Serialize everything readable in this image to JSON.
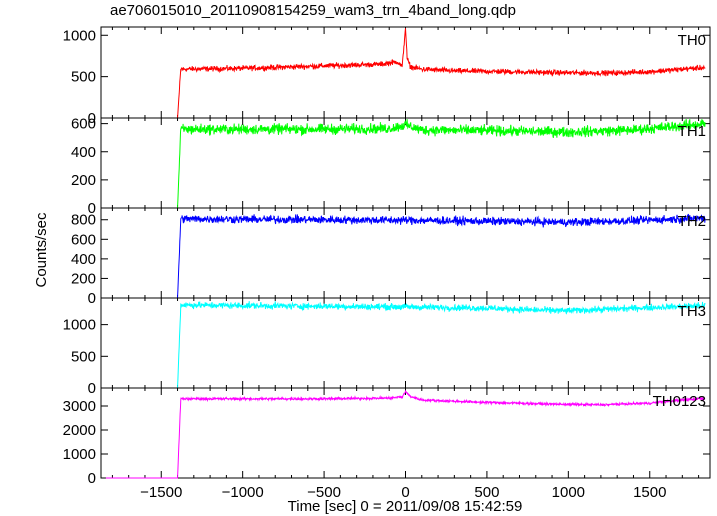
{
  "chart_data": {
    "type": "line",
    "title": "ae706015010_20110908154259_wam3_trn_4band_long.qdp",
    "xlabel": "Time [sec] 0 = 2011/09/08 15:42:59",
    "ylabel": "Counts/sec",
    "xlim": [
      -1870,
      1870
    ],
    "xticks": [
      -1500,
      -1000,
      -500,
      0,
      500,
      1000,
      1500
    ],
    "xtick_labels": [
      "−1500",
      "−1000",
      "−500",
      "0",
      "500",
      "1000",
      "1500"
    ],
    "onset_time": -1390,
    "series": [
      {
        "name": "TH0",
        "color": "#ff0000",
        "ylim": [
          0,
          1100
        ],
        "yticks": [
          0,
          500,
          1000
        ],
        "x": [
          -1840,
          -1400,
          -1380,
          -1000,
          -500,
          -150,
          -50,
          -20,
          0,
          10,
          30,
          100,
          300,
          600,
          900,
          1100,
          1300,
          1500,
          1700,
          1840
        ],
        "y": [
          0,
          0,
          590,
          600,
          630,
          650,
          680,
          620,
          1100,
          720,
          620,
          590,
          570,
          560,
          550,
          545,
          545,
          560,
          590,
          610
        ],
        "noise": 35
      },
      {
        "name": "TH1",
        "color": "#00ff00",
        "ylim": [
          0,
          640
        ],
        "yticks": [
          0,
          200,
          400,
          600
        ],
        "x": [
          -1840,
          -1400,
          -1380,
          -1000,
          -500,
          -100,
          0,
          100,
          500,
          1000,
          1400,
          1600,
          1840
        ],
        "y": [
          0,
          0,
          560,
          560,
          560,
          565,
          590,
          555,
          550,
          540,
          555,
          575,
          600
        ],
        "noise": 40
      },
      {
        "name": "TH2",
        "color": "#0000ff",
        "ylim": [
          0,
          920
        ],
        "yticks": [
          0,
          200,
          400,
          600,
          800
        ],
        "x": [
          -1840,
          -1400,
          -1380,
          -1000,
          -500,
          0,
          500,
          1000,
          1400,
          1840
        ],
        "y": [
          0,
          0,
          810,
          805,
          800,
          795,
          785,
          775,
          790,
          820
        ],
        "noise": 45
      },
      {
        "name": "TH3",
        "color": "#00ffff",
        "ylim": [
          0,
          1420
        ],
        "yticks": [
          0,
          500,
          1000
        ],
        "x": [
          -1840,
          -1400,
          -1380,
          -1000,
          -500,
          0,
          500,
          800,
          1000,
          1200,
          1500,
          1840
        ],
        "y": [
          0,
          0,
          1310,
          1300,
          1290,
          1280,
          1260,
          1230,
          1220,
          1240,
          1270,
          1300
        ],
        "noise": 55
      },
      {
        "name": "TH0123",
        "color": "#ff00ff",
        "ylim": [
          0,
          3750
        ],
        "yticks": [
          0,
          1000,
          2000,
          3000
        ],
        "x": [
          -1840,
          -1400,
          -1380,
          -1000,
          -500,
          -100,
          -20,
          0,
          30,
          100,
          500,
          900,
          1200,
          1500,
          1700,
          1840
        ],
        "y": [
          0,
          0,
          3300,
          3300,
          3300,
          3330,
          3380,
          3600,
          3400,
          3250,
          3150,
          3080,
          3050,
          3120,
          3250,
          3320
        ],
        "noise": 55
      }
    ]
  }
}
